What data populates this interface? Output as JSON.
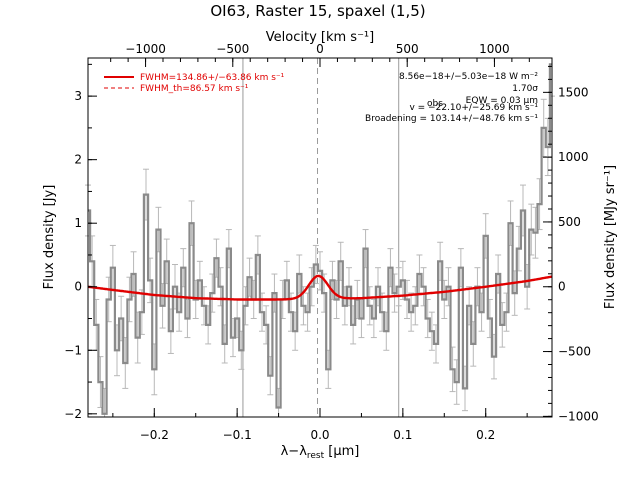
{
  "chart_data": {
    "type": "line",
    "title": "OI63, Raster 15, spaxel (1,5)",
    "xlabel": "λ−λrest [μm]",
    "xlabel_main": "λ−λ",
    "xlabel_sub": "rest",
    "xlabel_unit": " [μm]",
    "x2label": "Velocity [km s⁻¹]",
    "ylabel": "Flux density [Jy]",
    "y2label": "Flux density [MJy sr⁻¹]",
    "xlim": [
      -0.28,
      0.28
    ],
    "ylim": [
      -2.05,
      3.6
    ],
    "x2lim": [
      -1330,
      1330
    ],
    "y2lim": [
      -1005,
      1765
    ],
    "xticks": [
      -0.2,
      -0.1,
      0.0,
      0.1,
      0.2
    ],
    "xtick_labels": [
      "−0.2",
      "−0.1",
      "0.0",
      "0.1",
      "0.2"
    ],
    "yticks": [
      -2,
      -1,
      0,
      1,
      2,
      3
    ],
    "ytick_labels": [
      "−2",
      "−1",
      "0",
      "1",
      "2",
      "3"
    ],
    "x2ticks": [
      -1000,
      -500,
      0,
      500,
      1000
    ],
    "x2tick_labels": [
      "−1000",
      "−500",
      "0",
      "500",
      "1000"
    ],
    "y2ticks": [
      -1000,
      -500,
      0,
      500,
      1000,
      1500
    ],
    "y2tick_labels": [
      "−1000",
      "−500",
      "0",
      "500",
      "1000",
      "1500"
    ],
    "vertical_lines": [
      -0.093,
      0.095
    ],
    "center_dashed_line": -0.003,
    "legend": {
      "placement": "top-left",
      "entries": [
        "FWHM=134.86+/−63.86 km s⁻¹",
        "FWHM_th=86.57 km s⁻¹"
      ]
    },
    "annotations": [
      "8.56e−18+/−5.03e−18 W m⁻²",
      "1.70σ",
      "EQW = 0.03 μm",
      "v = −22.10+/−25.69 km s⁻¹",
      "Broadening = 103.14+/−48.76 km s⁻¹"
    ],
    "eqw_sub": "obs",
    "spectrum": {
      "name": "",
      "x": [
        -0.28,
        -0.275,
        -0.27,
        -0.265,
        -0.26,
        -0.255,
        -0.25,
        -0.245,
        -0.24,
        -0.235,
        -0.23,
        -0.225,
        -0.22,
        -0.215,
        -0.21,
        -0.205,
        -0.2,
        -0.195,
        -0.19,
        -0.185,
        -0.18,
        -0.175,
        -0.17,
        -0.165,
        -0.16,
        -0.155,
        -0.15,
        -0.145,
        -0.14,
        -0.135,
        -0.13,
        -0.125,
        -0.12,
        -0.115,
        -0.11,
        -0.105,
        -0.1,
        -0.095,
        -0.09,
        -0.085,
        -0.08,
        -0.075,
        -0.07,
        -0.065,
        -0.06,
        -0.055,
        -0.05,
        -0.045,
        -0.04,
        -0.035,
        -0.03,
        -0.025,
        -0.02,
        -0.015,
        -0.01,
        -0.005,
        0.0,
        0.005,
        0.01,
        0.015,
        0.02,
        0.025,
        0.03,
        0.035,
        0.04,
        0.045,
        0.05,
        0.055,
        0.06,
        0.065,
        0.07,
        0.075,
        0.08,
        0.085,
        0.09,
        0.095,
        0.1,
        0.105,
        0.11,
        0.115,
        0.12,
        0.125,
        0.13,
        0.135,
        0.14,
        0.145,
        0.15,
        0.155,
        0.16,
        0.165,
        0.17,
        0.175,
        0.18,
        0.185,
        0.19,
        0.195,
        0.2,
        0.205,
        0.21,
        0.215,
        0.22,
        0.225,
        0.23,
        0.235,
        0.24,
        0.245,
        0.25,
        0.255,
        0.26,
        0.265,
        0.27,
        0.275,
        0.28
      ],
      "y": [
        1.2,
        0.4,
        -0.6,
        -1.5,
        -2.0,
        -0.2,
        0.3,
        -1.0,
        -0.5,
        -1.2,
        -0.2,
        0.2,
        -0.8,
        -0.4,
        1.45,
        0.1,
        -1.3,
        0.9,
        -0.3,
        0.4,
        -0.7,
        0.0,
        -0.4,
        0.3,
        -0.5,
        1.0,
        -0.2,
        0.1,
        -0.3,
        -0.6,
        -0.1,
        0.45,
        0.0,
        -0.9,
        0.6,
        -0.8,
        -0.5,
        -1.0,
        -0.3,
        0.15,
        -0.2,
        0.5,
        -0.4,
        -0.6,
        -1.4,
        -0.1,
        -1.9,
        -0.2,
        0.1,
        -0.4,
        -0.7,
        0.2,
        -0.3,
        -0.4,
        0.0,
        0.35,
        0.25,
        -0.1,
        -1.3,
        0.1,
        -0.2,
        0.4,
        -0.3,
        0.0,
        -0.6,
        -0.2,
        -0.5,
        0.6,
        -0.3,
        -0.5,
        0.0,
        -0.4,
        -0.7,
        0.3,
        -0.1,
        0.0,
        0.1,
        -0.2,
        -0.4,
        -0.3,
        0.2,
        0.0,
        -0.5,
        -0.7,
        -0.9,
        0.4,
        -0.2,
        0.0,
        -1.3,
        -1.5,
        0.3,
        -1.6,
        -0.3,
        -0.9,
        0.0,
        -0.4,
        0.8,
        -0.5,
        -1.1,
        0.2,
        -0.6,
        -0.4,
        1.0,
        -0.1,
        0.6,
        1.2,
        0.0,
        0.9,
        0.85,
        1.3,
        2.5,
        2.2,
        3.5
      ],
      "error": [
        0.4,
        0.4,
        0.4,
        0.4,
        0.4,
        0.35,
        0.35,
        0.4,
        0.35,
        0.4,
        0.35,
        0.35,
        0.4,
        0.35,
        0.4,
        0.35,
        0.4,
        0.35,
        0.35,
        0.35,
        0.35,
        0.35,
        0.3,
        0.3,
        0.3,
        0.35,
        0.3,
        0.3,
        0.3,
        0.3,
        0.3,
        0.3,
        0.3,
        0.3,
        0.3,
        0.3,
        0.3,
        0.3,
        0.3,
        0.3,
        0.3,
        0.3,
        0.3,
        0.3,
        0.3,
        0.3,
        0.3,
        0.3,
        0.3,
        0.3,
        0.3,
        0.3,
        0.3,
        0.3,
        0.3,
        0.3,
        0.3,
        0.3,
        0.3,
        0.3,
        0.3,
        0.3,
        0.3,
        0.3,
        0.3,
        0.3,
        0.3,
        0.3,
        0.3,
        0.3,
        0.3,
        0.3,
        0.3,
        0.3,
        0.3,
        0.3,
        0.3,
        0.3,
        0.3,
        0.3,
        0.3,
        0.3,
        0.3,
        0.3,
        0.3,
        0.3,
        0.3,
        0.3,
        0.35,
        0.35,
        0.3,
        0.35,
        0.3,
        0.35,
        0.3,
        0.3,
        0.35,
        0.3,
        0.35,
        0.3,
        0.35,
        0.3,
        0.35,
        0.35,
        0.35,
        0.4,
        0.35,
        0.4,
        0.4,
        0.4,
        0.45,
        0.45,
        0.5
      ],
      "color": "#8a8a8a"
    },
    "fit": {
      "name": "",
      "baseline_points": [
        [
          -0.28,
          0.0
        ],
        [
          -0.25,
          -0.05
        ],
        [
          -0.2,
          -0.13
        ],
        [
          -0.15,
          -0.18
        ],
        [
          -0.1,
          -0.2
        ],
        [
          -0.05,
          -0.2
        ],
        [
          0.0,
          -0.19
        ],
        [
          0.05,
          -0.18
        ],
        [
          0.1,
          -0.14
        ],
        [
          0.15,
          -0.08
        ],
        [
          0.2,
          0.0
        ],
        [
          0.25,
          0.09
        ],
        [
          0.28,
          0.16
        ]
      ],
      "gaussian_center": -0.002,
      "gaussian_amplitude": 0.36,
      "gaussian_sigma": 0.0115,
      "color": "#e00000"
    }
  }
}
